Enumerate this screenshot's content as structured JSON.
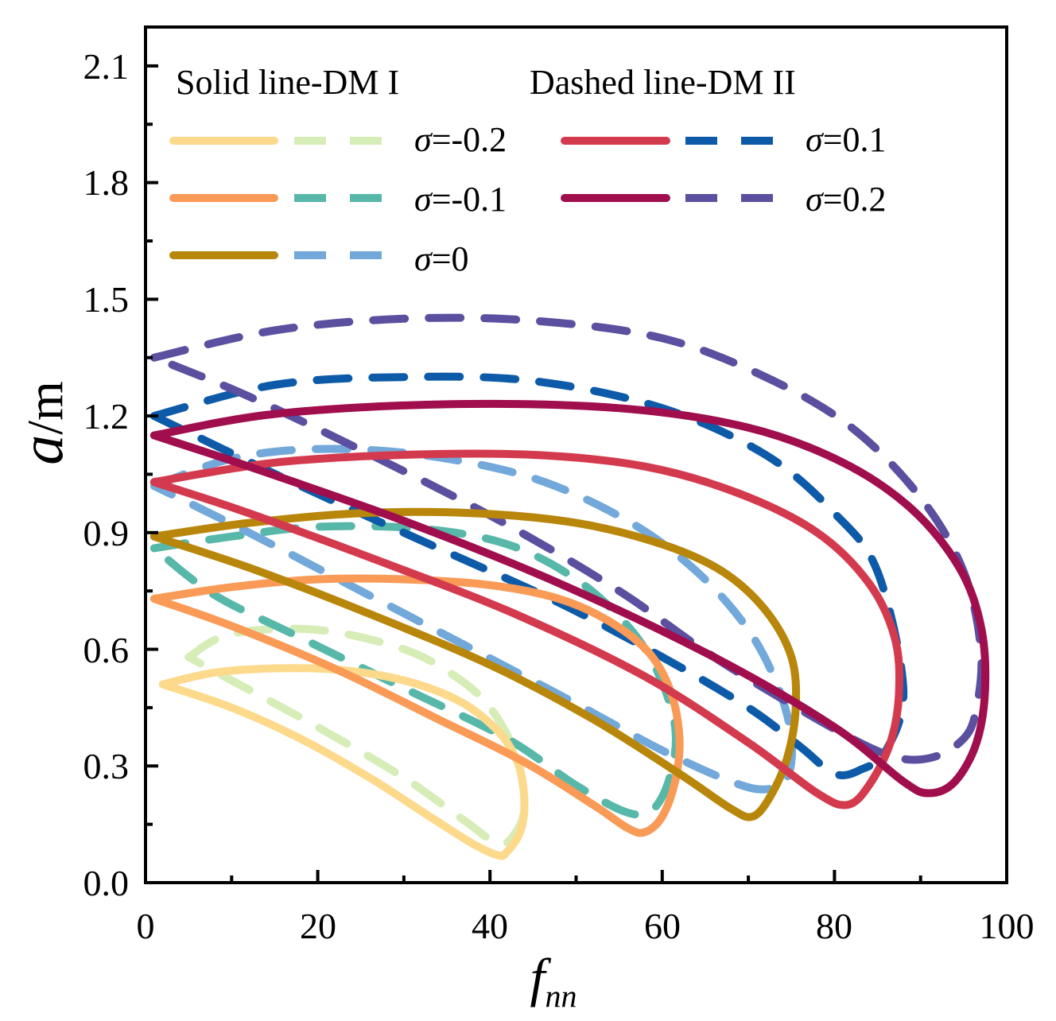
{
  "chart_data": {
    "type": "line",
    "title": "",
    "xlabel": {
      "main": "f",
      "sub": "nn"
    },
    "ylabel": {
      "italic": "a",
      "rest": "/m"
    },
    "xlim": [
      0,
      100
    ],
    "ylim": [
      0,
      2.2
    ],
    "xticks": [
      "0",
      "20",
      "40",
      "60",
      "80",
      "100"
    ],
    "yticks": [
      "0.0",
      "0.3",
      "0.6",
      "0.9",
      "1.2",
      "1.5",
      "1.8",
      "2.1"
    ],
    "xtick_values": [
      0,
      20,
      40,
      60,
      80,
      100
    ],
    "ytick_values": [
      0.0,
      0.3,
      0.6,
      0.9,
      1.2,
      1.5,
      1.8,
      2.1
    ],
    "legend": {
      "header_solid": "Solid line-DM I",
      "header_dashed": "Dashed line-DM II",
      "sigma_symbol": "σ",
      "entries": [
        {
          "label": "=-0.2",
          "solid_color": "#FDD98C",
          "dashed_color": "#D7EDB8"
        },
        {
          "label": "=-0.1",
          "solid_color": "#F99A57",
          "dashed_color": "#57B8A9"
        },
        {
          "label": "=0",
          "solid_color": "#B8860B",
          "dashed_color": "#72A8DA"
        },
        {
          "label": "=0.1",
          "solid_color": "#D43A4E",
          "dashed_color": "#0D5BA8"
        },
        {
          "label": "=0.2",
          "solid_color": "#A00E4E",
          "dashed_color": "#5B4FA0"
        }
      ]
    },
    "series": [
      {
        "name": "σ=-0.2 DM I",
        "style": "solid",
        "color": "#FDD98C",
        "x": [
          2,
          8,
          15,
          22,
          28,
          33,
          37,
          40,
          42,
          43.5,
          44,
          43.5,
          42,
          41,
          38,
          33,
          26,
          18,
          10,
          2
        ],
        "y": [
          0.51,
          0.54,
          0.551,
          0.548,
          0.53,
          0.5,
          0.46,
          0.41,
          0.36,
          0.29,
          0.2,
          0.13,
          0.08,
          0.07,
          0.1,
          0.17,
          0.27,
          0.37,
          0.45,
          0.51
        ]
      },
      {
        "name": "σ=-0.1 DM I",
        "style": "solid",
        "color": "#F99A57",
        "x": [
          1,
          10,
          20,
          30,
          40,
          48,
          54,
          58.5,
          61,
          62,
          61.5,
          60,
          58,
          56,
          52,
          44,
          34,
          22,
          10,
          1
        ],
        "y": [
          0.73,
          0.76,
          0.78,
          0.78,
          0.765,
          0.73,
          0.67,
          0.59,
          0.49,
          0.37,
          0.26,
          0.17,
          0.13,
          0.14,
          0.2,
          0.31,
          0.42,
          0.55,
          0.66,
          0.73
        ]
      },
      {
        "name": "σ=0 DM I",
        "style": "solid",
        "color": "#B8860B",
        "x": [
          1,
          12,
          25,
          38,
          50,
          60,
          67,
          72,
          75,
          75.5,
          74.5,
          72.5,
          70.5,
          68,
          62,
          52,
          40,
          25,
          12,
          1
        ],
        "y": [
          0.89,
          0.925,
          0.95,
          0.95,
          0.925,
          0.87,
          0.8,
          0.7,
          0.58,
          0.45,
          0.32,
          0.22,
          0.17,
          0.19,
          0.28,
          0.42,
          0.56,
          0.7,
          0.81,
          0.89
        ]
      },
      {
        "name": "σ=0.1 DM I",
        "style": "solid",
        "color": "#D43A4E",
        "x": [
          1,
          15,
          30,
          45,
          58,
          69,
          78,
          84,
          87,
          87.5,
          86.5,
          84,
          81.5,
          78,
          70,
          58,
          43,
          28,
          12,
          1
        ],
        "y": [
          1.03,
          1.08,
          1.1,
          1.1,
          1.07,
          1.0,
          0.9,
          0.77,
          0.63,
          0.49,
          0.36,
          0.25,
          0.2,
          0.23,
          0.36,
          0.53,
          0.69,
          0.82,
          0.95,
          1.03
        ]
      },
      {
        "name": "σ=0.2 DM I",
        "style": "solid",
        "color": "#A00E4E",
        "x": [
          1,
          15,
          35,
          55,
          70,
          81,
          89,
          94.5,
          97,
          97.5,
          96.5,
          94,
          91,
          88,
          80,
          66,
          48,
          30,
          12,
          1
        ],
        "y": [
          1.15,
          1.205,
          1.23,
          1.22,
          1.17,
          1.08,
          0.96,
          0.81,
          0.66,
          0.5,
          0.36,
          0.26,
          0.23,
          0.26,
          0.4,
          0.58,
          0.77,
          0.93,
          1.07,
          1.15
        ]
      },
      {
        "name": "σ=-0.2 DM II",
        "style": "dashed",
        "color": "#D7EDB8",
        "x": [
          5,
          10,
          20,
          30,
          36,
          40,
          43,
          44,
          43,
          41,
          37,
          30,
          20,
          10,
          5
        ],
        "y": [
          0.58,
          0.64,
          0.65,
          0.6,
          0.53,
          0.45,
          0.33,
          0.2,
          0.13,
          0.1,
          0.16,
          0.27,
          0.4,
          0.52,
          0.58
        ]
      },
      {
        "name": "σ=-0.1 DM II",
        "style": "dashed",
        "color": "#57B8A9",
        "x": [
          1,
          10,
          20,
          32,
          42,
          50,
          56,
          59.5,
          61.5,
          61,
          59,
          56,
          50,
          42,
          30,
          18,
          8,
          1
        ],
        "y": [
          0.86,
          0.89,
          0.915,
          0.91,
          0.87,
          0.78,
          0.66,
          0.54,
          0.4,
          0.28,
          0.19,
          0.18,
          0.25,
          0.37,
          0.5,
          0.63,
          0.74,
          0.86
        ]
      },
      {
        "name": "σ=0 DM II",
        "style": "dashed",
        "color": "#72A8DA",
        "x": [
          1,
          10,
          20,
          32,
          45,
          56,
          64,
          70,
          73.5,
          75,
          74.5,
          72,
          68,
          60,
          50,
          38,
          25,
          12,
          1
        ],
        "y": [
          1.02,
          1.09,
          1.115,
          1.1,
          1.04,
          0.93,
          0.8,
          0.65,
          0.5,
          0.37,
          0.27,
          0.24,
          0.26,
          0.34,
          0.46,
          0.6,
          0.75,
          0.9,
          1.02
        ]
      },
      {
        "name": "σ=0.1 DM II",
        "style": "dashed",
        "color": "#0D5BA8",
        "x": [
          1,
          15,
          30,
          45,
          60,
          72,
          80,
          85,
          88,
          86,
          83,
          80,
          76,
          70,
          60,
          48,
          34,
          18,
          1
        ],
        "y": [
          1.2,
          1.28,
          1.3,
          1.29,
          1.22,
          1.1,
          0.95,
          0.8,
          0.5,
          0.34,
          0.29,
          0.28,
          0.35,
          0.45,
          0.58,
          0.72,
          0.86,
          1.02,
          1.2
        ]
      },
      {
        "name": "σ=0.2 DM II",
        "style": "dashed",
        "color": "#5B4FA0",
        "x": [
          1,
          15,
          30,
          45,
          60,
          72,
          82,
          90,
          95,
          97,
          96.5,
          95,
          91,
          86,
          78,
          66,
          55,
          42,
          28,
          12,
          1
        ],
        "y": [
          1.35,
          1.42,
          1.45,
          1.445,
          1.4,
          1.3,
          1.17,
          0.99,
          0.8,
          0.6,
          0.45,
          0.37,
          0.32,
          0.33,
          0.42,
          0.58,
          0.75,
          0.92,
          1.08,
          1.25,
          1.35
        ]
      }
    ]
  }
}
